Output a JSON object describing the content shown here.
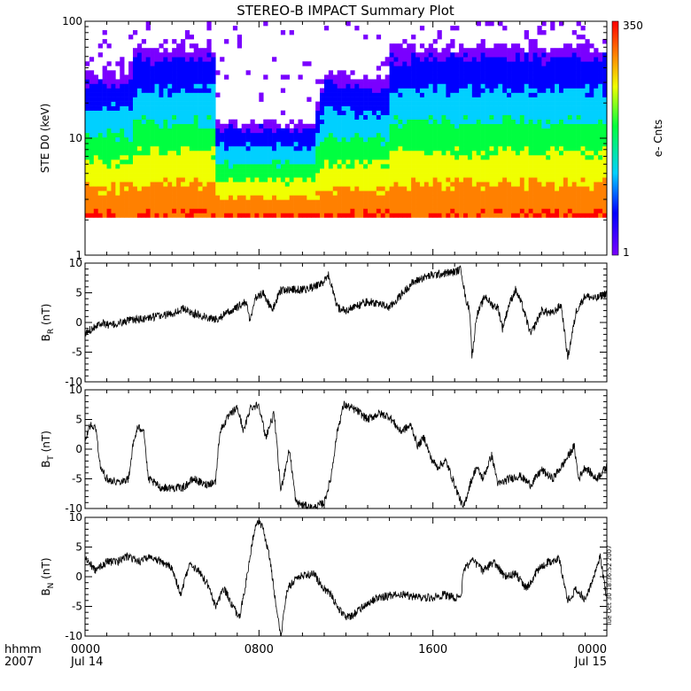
{
  "chart_data": {
    "title": "STEREO-B IMPACT Summary Plot",
    "x_axis": {
      "ticks": [
        "0000",
        "0800",
        "1600",
        "0000"
      ],
      "tick_hours": [
        0,
        8,
        16,
        24
      ],
      "dates": [
        "Jul 14",
        "Jul 15"
      ],
      "row_labels": [
        "hhmm",
        "2007"
      ],
      "range_hours": [
        0,
        24
      ]
    },
    "panels": [
      {
        "type": "heatmap",
        "ylabel": "STE D0 (keV)",
        "yscale": "log",
        "ylim": [
          1,
          100
        ],
        "yticks": [
          "1",
          "10",
          "100"
        ],
        "colorbar": {
          "label": "e- Cnts",
          "min_label": "1",
          "max_label": "350",
          "colors": [
            "#7a00ff",
            "#0000ff",
            "#00d0ff",
            "#00ff40",
            "#f0ff00",
            "#ff8000",
            "#ff0000"
          ]
        },
        "lower_edge_keV_by_hour": [
          [
            0,
            2.1
          ],
          [
            24,
            2.1
          ]
        ],
        "counts_profile_by_hour": [
          [
            0,
            0.85
          ],
          [
            2.2,
            0.85
          ],
          [
            2.3,
            1.0
          ],
          [
            6.0,
            1.0
          ],
          [
            6.1,
            0.55
          ],
          [
            10.5,
            0.55
          ],
          [
            11.0,
            0.85
          ],
          [
            14.0,
            0.8
          ],
          [
            14.1,
            1.0
          ],
          [
            24,
            1.0
          ]
        ]
      },
      {
        "type": "line",
        "ylabel": "BR (nT)",
        "ylabel_main": "B",
        "ylabel_sub": "R",
        "ylabel_unit": "(nT)",
        "ylim": [
          -10,
          10
        ],
        "yticks": [
          "-10",
          "-5",
          "0",
          "5",
          "10"
        ],
        "points": [
          [
            0,
            -2
          ],
          [
            0.3,
            -1
          ],
          [
            0.7,
            0
          ],
          [
            1.2,
            -0.5
          ],
          [
            2.0,
            0.3
          ],
          [
            3.0,
            0.8
          ],
          [
            4.0,
            1.5
          ],
          [
            4.5,
            2.3
          ],
          [
            5.0,
            1.5
          ],
          [
            6.0,
            0.5
          ],
          [
            7.0,
            2.5
          ],
          [
            7.4,
            3.5
          ],
          [
            7.6,
            0.2
          ],
          [
            7.8,
            4
          ],
          [
            8.2,
            5
          ],
          [
            8.6,
            2
          ],
          [
            9.0,
            5.5
          ],
          [
            10.0,
            5.5
          ],
          [
            10.5,
            6
          ],
          [
            11.0,
            6.8
          ],
          [
            11.2,
            8
          ],
          [
            11.6,
            2.5
          ],
          [
            12.0,
            2
          ],
          [
            13.0,
            3.5
          ],
          [
            13.5,
            3.2
          ],
          [
            14.0,
            2.5
          ],
          [
            14.5,
            4.5
          ],
          [
            15.0,
            6.5
          ],
          [
            15.5,
            7.5
          ],
          [
            16.0,
            8
          ],
          [
            17.0,
            8.5
          ],
          [
            17.3,
            9
          ],
          [
            17.5,
            4
          ],
          [
            17.7,
            2
          ],
          [
            17.8,
            -6
          ],
          [
            18.0,
            1
          ],
          [
            18.4,
            4.5
          ],
          [
            18.7,
            3
          ],
          [
            19.0,
            2.5
          ],
          [
            19.2,
            -1
          ],
          [
            19.5,
            3
          ],
          [
            19.8,
            5.5
          ],
          [
            20.1,
            3
          ],
          [
            20.5,
            -2
          ],
          [
            21.0,
            2
          ],
          [
            21.5,
            1.5
          ],
          [
            21.9,
            3
          ],
          [
            22.2,
            -6
          ],
          [
            22.6,
            2
          ],
          [
            23.0,
            4.5
          ],
          [
            23.5,
            4
          ],
          [
            24,
            5
          ]
        ]
      },
      {
        "type": "line",
        "ylabel": "BT (nT)",
        "ylabel_main": "B",
        "ylabel_sub": "T",
        "ylabel_unit": "(nT)",
        "ylim": [
          -10,
          10
        ],
        "yticks": [
          "-10",
          "-5",
          "0",
          "5",
          "10"
        ],
        "points": [
          [
            0,
            1
          ],
          [
            0.2,
            4
          ],
          [
            0.5,
            3.5
          ],
          [
            0.7,
            -3
          ],
          [
            1.0,
            -5
          ],
          [
            1.5,
            -5.5
          ],
          [
            2.0,
            -5
          ],
          [
            2.2,
            0.5
          ],
          [
            2.4,
            3.5
          ],
          [
            2.7,
            3.5
          ],
          [
            2.9,
            -5
          ],
          [
            3.5,
            -6.5
          ],
          [
            4.5,
            -6.5
          ],
          [
            5.0,
            -5
          ],
          [
            5.5,
            -6
          ],
          [
            6.0,
            -5.5
          ],
          [
            6.2,
            3
          ],
          [
            6.6,
            5.5
          ],
          [
            7.0,
            7
          ],
          [
            7.3,
            3
          ],
          [
            7.6,
            7
          ],
          [
            8.0,
            7.5
          ],
          [
            8.3,
            2
          ],
          [
            8.7,
            6
          ],
          [
            9.0,
            -7
          ],
          [
            9.4,
            0
          ],
          [
            9.7,
            -9
          ],
          [
            10.5,
            -10
          ],
          [
            11.0,
            -9
          ],
          [
            11.3,
            -5
          ],
          [
            11.6,
            3
          ],
          [
            11.9,
            7.5
          ],
          [
            12.5,
            6.5
          ],
          [
            13.0,
            5
          ],
          [
            13.5,
            6
          ],
          [
            14.0,
            5.5
          ],
          [
            14.5,
            3
          ],
          [
            15.0,
            4
          ],
          [
            15.3,
            0.5
          ],
          [
            15.6,
            2
          ],
          [
            15.9,
            -1.5
          ],
          [
            16.2,
            -3
          ],
          [
            16.6,
            -2
          ],
          [
            17.0,
            -6
          ],
          [
            17.4,
            -10
          ],
          [
            17.7,
            -6
          ],
          [
            18.0,
            -3
          ],
          [
            18.3,
            -5
          ],
          [
            18.7,
            -1
          ],
          [
            19.0,
            -6
          ],
          [
            19.5,
            -5
          ],
          [
            20.0,
            -4.5
          ],
          [
            20.5,
            -6
          ],
          [
            21.0,
            -3.5
          ],
          [
            21.5,
            -5
          ],
          [
            22.0,
            -2.5
          ],
          [
            22.5,
            0.5
          ],
          [
            22.7,
            -5
          ],
          [
            23.0,
            -3
          ],
          [
            23.5,
            -5
          ],
          [
            24,
            -3
          ]
        ]
      },
      {
        "type": "line",
        "ylabel": "BN (nT)",
        "ylabel_main": "B",
        "ylabel_sub": "N",
        "ylabel_unit": "(nT)",
        "ylim": [
          -10,
          10
        ],
        "yticks": [
          "-10",
          "-5",
          "0",
          "5",
          "10"
        ],
        "points": [
          [
            0,
            3
          ],
          [
            0.5,
            1
          ],
          [
            1.0,
            2.5
          ],
          [
            1.5,
            2.5
          ],
          [
            2.0,
            3.5
          ],
          [
            2.5,
            2.5
          ],
          [
            3.0,
            3.5
          ],
          [
            3.5,
            2.5
          ],
          [
            4.0,
            1.5
          ],
          [
            4.4,
            -3
          ],
          [
            4.8,
            2
          ],
          [
            5.2,
            1
          ],
          [
            5.6,
            -1
          ],
          [
            6.0,
            -5
          ],
          [
            6.4,
            -2
          ],
          [
            6.8,
            -5
          ],
          [
            7.1,
            -7
          ],
          [
            7.3,
            -3
          ],
          [
            7.5,
            1
          ],
          [
            7.7,
            6
          ],
          [
            7.9,
            9.5
          ],
          [
            8.2,
            8
          ],
          [
            8.5,
            3
          ],
          [
            8.8,
            -5
          ],
          [
            9.0,
            -10
          ],
          [
            9.3,
            -2
          ],
          [
            9.8,
            0
          ],
          [
            10.5,
            0.5
          ],
          [
            10.8,
            -1
          ],
          [
            11.0,
            -2
          ],
          [
            11.3,
            -3
          ],
          [
            11.6,
            -5
          ],
          [
            12.0,
            -7
          ],
          [
            12.5,
            -6
          ],
          [
            13.0,
            -4.5
          ],
          [
            13.5,
            -3.5
          ],
          [
            14.5,
            -3
          ],
          [
            15.5,
            -3.5
          ],
          [
            16.0,
            -3.5
          ],
          [
            16.5,
            -3
          ],
          [
            17.0,
            -3.5
          ],
          [
            17.3,
            -3.5
          ],
          [
            17.4,
            1
          ],
          [
            17.8,
            3
          ],
          [
            18.3,
            1
          ],
          [
            18.8,
            2.5
          ],
          [
            19.3,
            0
          ],
          [
            19.8,
            0.5
          ],
          [
            20.3,
            -2
          ],
          [
            20.8,
            1
          ],
          [
            21.3,
            2.5
          ],
          [
            21.8,
            3
          ],
          [
            22.2,
            -4
          ],
          [
            22.6,
            -2
          ],
          [
            23.0,
            -4
          ],
          [
            23.4,
            0
          ],
          [
            23.7,
            3.5
          ],
          [
            24,
            -4
          ]
        ]
      }
    ],
    "timestamp_vertical": "Tue Oct 30 18:36:52 2007"
  }
}
